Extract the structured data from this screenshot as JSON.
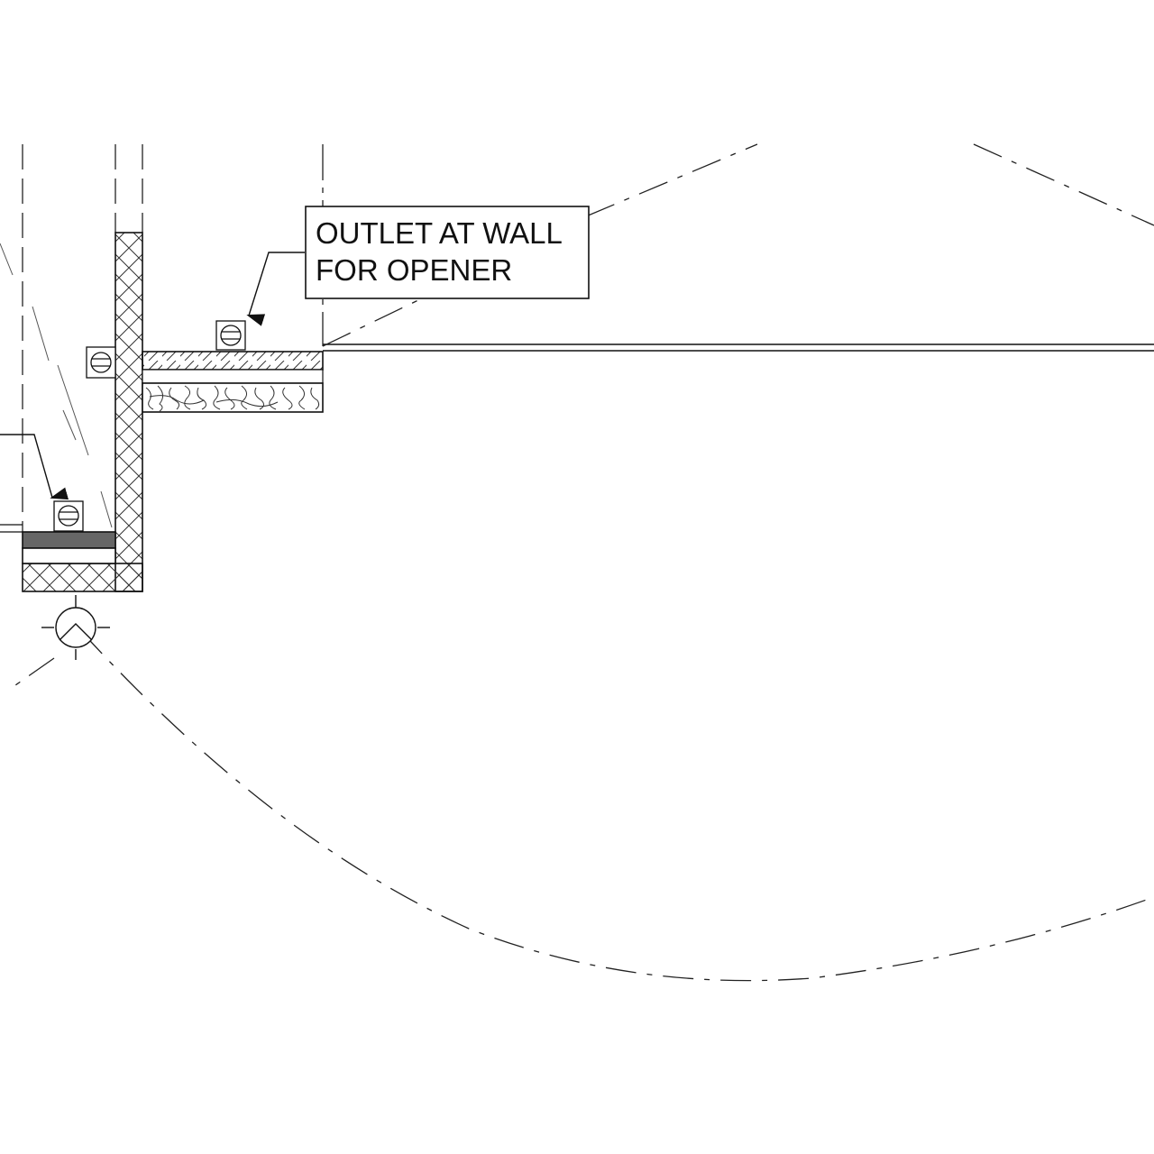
{
  "callout": {
    "line1": "OUTLET AT WALL",
    "line2": "FOR OPENER"
  },
  "symbols": [
    "duplex-outlet-icon",
    "light-fixture-icon"
  ],
  "colors": {
    "line": "#111111",
    "background": "#ffffff",
    "weatherstrip": "#666666"
  }
}
